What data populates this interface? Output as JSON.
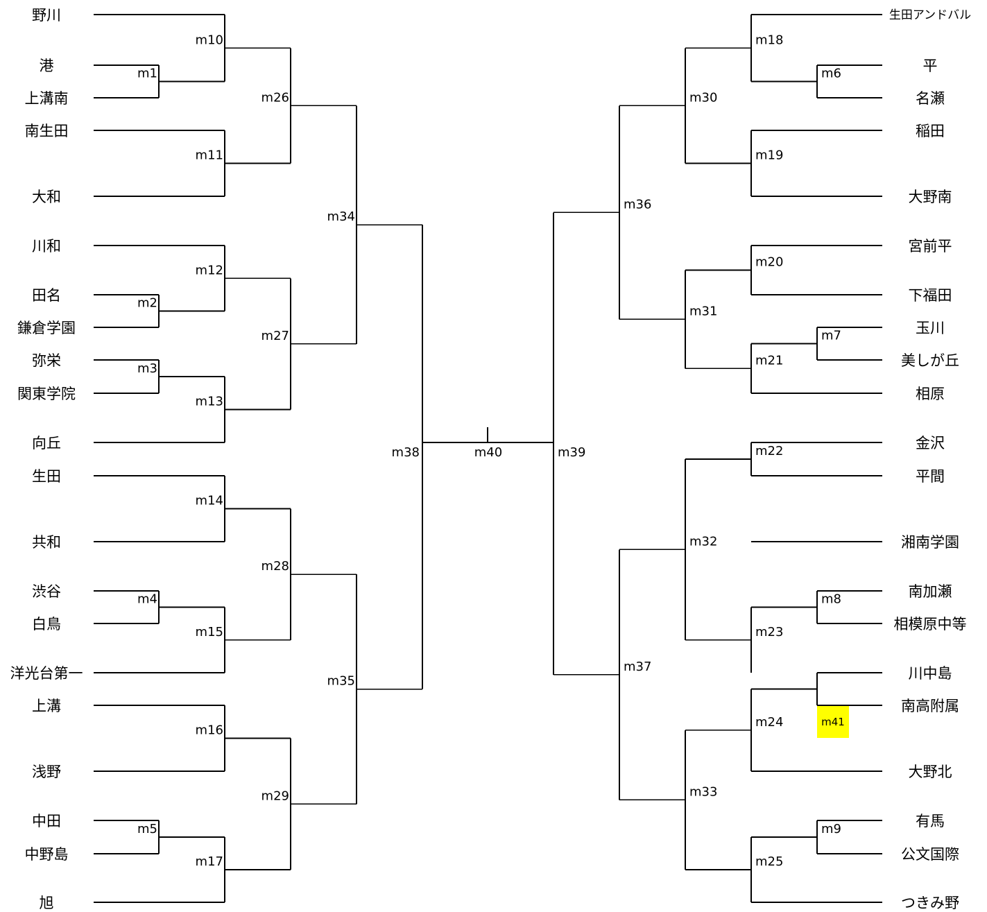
{
  "teams": {
    "left": [
      "野川",
      "港",
      "上溝南",
      "南生田",
      "大和",
      "川和",
      "田名",
      "鎌倉学園",
      "弥栄",
      "関東学院",
      "向丘",
      "生田",
      "共和",
      "渋谷",
      "白鳥",
      "洋光台第一",
      "上溝",
      "浅野",
      "中田",
      "中野島",
      "旭"
    ],
    "right": [
      "生田アンドバル",
      "平",
      "名瀬",
      "稲田",
      "大野南",
      "宮前平",
      "下福田",
      "玉川",
      "美しが丘",
      "相原",
      "金沢",
      "平間",
      "湘南学園",
      "南加瀬",
      "相模原中等",
      "川中島",
      "南高附属",
      "大野北",
      "有馬",
      "公文国際",
      "つきみ野"
    ]
  },
  "matches": {
    "m1": "m1",
    "m2": "m2",
    "m3": "m3",
    "m4": "m4",
    "m5": "m5",
    "m6": "m6",
    "m7": "m7",
    "m8": "m8",
    "m9": "m9",
    "m10": "m10",
    "m11": "m11",
    "m12": "m12",
    "m13": "m13",
    "m14": "m14",
    "m15": "m15",
    "m16": "m16",
    "m17": "m17",
    "m18": "m18",
    "m19": "m19",
    "m20": "m20",
    "m21": "m21",
    "m22": "m22",
    "m23": "m23",
    "m24": "m24",
    "m25": "m25",
    "m26": "m26",
    "m27": "m27",
    "m28": "m28",
    "m29": "m29",
    "m30": "m30",
    "m31": "m31",
    "m32": "m32",
    "m33": "m33",
    "m34": "m34",
    "m35": "m35",
    "m36": "m36",
    "m37": "m37",
    "m38": "m38",
    "m39": "m39",
    "m40": "m40",
    "m41": "m41"
  },
  "colors": {
    "highlight": "#ffff00",
    "line": "#000000"
  }
}
